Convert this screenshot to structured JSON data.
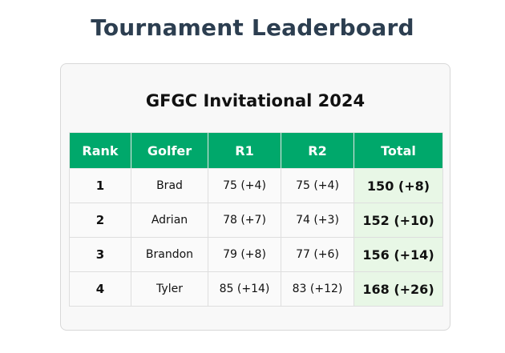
{
  "page": {
    "title": "Tournament Leaderboard"
  },
  "card": {
    "title": "GFGC Invitational 2024"
  },
  "table": {
    "columns": [
      "Rank",
      "Golfer",
      "R1",
      "R2",
      "Total"
    ],
    "rows": [
      {
        "rank": "1",
        "golfer": "Brad",
        "r1": "75 (+4)",
        "r2": "75 (+4)",
        "total": "150 (+8)"
      },
      {
        "rank": "2",
        "golfer": "Adrian",
        "r1": "78 (+7)",
        "r2": "74 (+3)",
        "total": "152 (+10)"
      },
      {
        "rank": "3",
        "golfer": "Brandon",
        "r1": "79 (+8)",
        "r2": "77 (+6)",
        "total": "156 (+14)"
      },
      {
        "rank": "4",
        "golfer": "Tyler",
        "r1": "85 (+14)",
        "r2": "83 (+12)",
        "total": "168 (+26)"
      }
    ]
  },
  "colors": {
    "header_bg": "#00a86b",
    "total_bg": "#e8f7e6",
    "title_color": "#2c3e50"
  }
}
